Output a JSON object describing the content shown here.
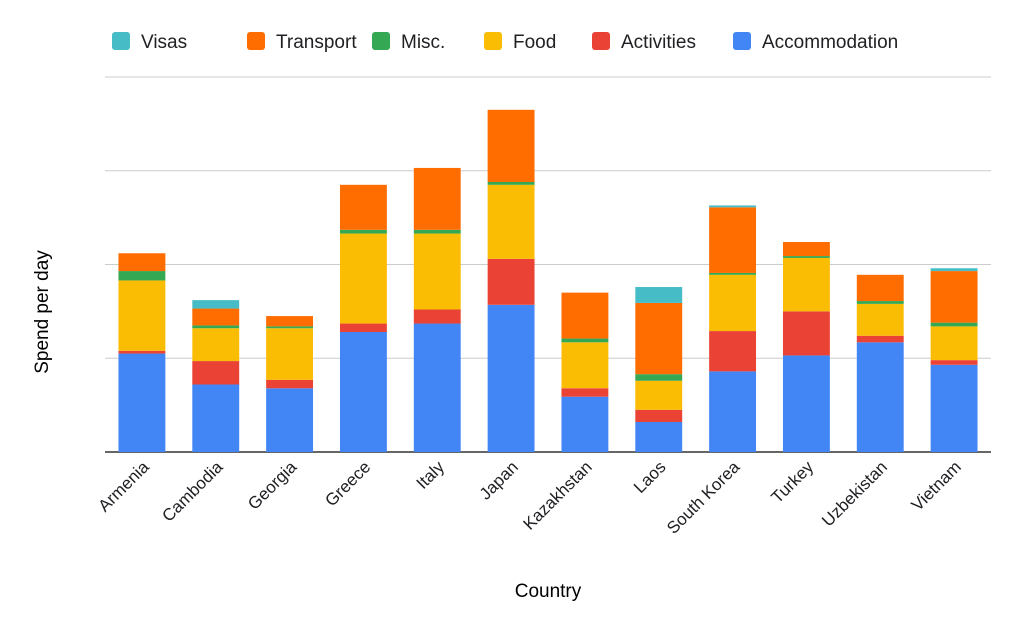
{
  "chart_data": {
    "type": "bar",
    "stacked": true,
    "title": "",
    "xlabel": "Country",
    "ylabel": "Spend per day",
    "y_tick_labels_shown": false,
    "ylim": [
      0,
      4
    ],
    "grid": true,
    "legend_position": "top",
    "categories": [
      "Armenia",
      "Cambodia",
      "Georgia",
      "Greece",
      "Italy",
      "Japan",
      "Kazakhstan",
      "Laos",
      "South Korea",
      "Turkey",
      "Uzbekistan",
      "Vietnam"
    ],
    "series": [
      {
        "name": "Accommodation",
        "color": "#4285F4",
        "values": [
          1.05,
          0.72,
          0.68,
          1.28,
          1.37,
          1.57,
          0.59,
          0.32,
          0.86,
          1.03,
          1.17,
          0.93
        ]
      },
      {
        "name": "Activities",
        "color": "#EA4335",
        "values": [
          0.03,
          0.25,
          0.09,
          0.09,
          0.15,
          0.49,
          0.09,
          0.13,
          0.43,
          0.47,
          0.07,
          0.05
        ]
      },
      {
        "name": "Food",
        "color": "#FBBC04",
        "values": [
          0.75,
          0.35,
          0.55,
          0.96,
          0.81,
          0.79,
          0.49,
          0.31,
          0.6,
          0.57,
          0.34,
          0.36
        ]
      },
      {
        "name": "Misc.",
        "color": "#34A853",
        "values": [
          0.1,
          0.03,
          0.02,
          0.04,
          0.04,
          0.03,
          0.04,
          0.07,
          0.02,
          0.02,
          0.03,
          0.04
        ]
      },
      {
        "name": "Transport",
        "color": "#FF6D01",
        "values": [
          0.19,
          0.18,
          0.11,
          0.48,
          0.66,
          0.77,
          0.49,
          0.76,
          0.7,
          0.15,
          0.28,
          0.55
        ]
      },
      {
        "name": "Visas",
        "color": "#46BDC6",
        "values": [
          0,
          0.09,
          0,
          0,
          0,
          0,
          0,
          0.17,
          0.02,
          0,
          0,
          0.03
        ]
      }
    ],
    "legend_order": [
      "Visas",
      "Transport",
      "Misc.",
      "Food",
      "Activities",
      "Accommodation"
    ]
  },
  "colors": {
    "gridline": "#cccccc",
    "baseline": "#333333",
    "text": "#202124"
  }
}
